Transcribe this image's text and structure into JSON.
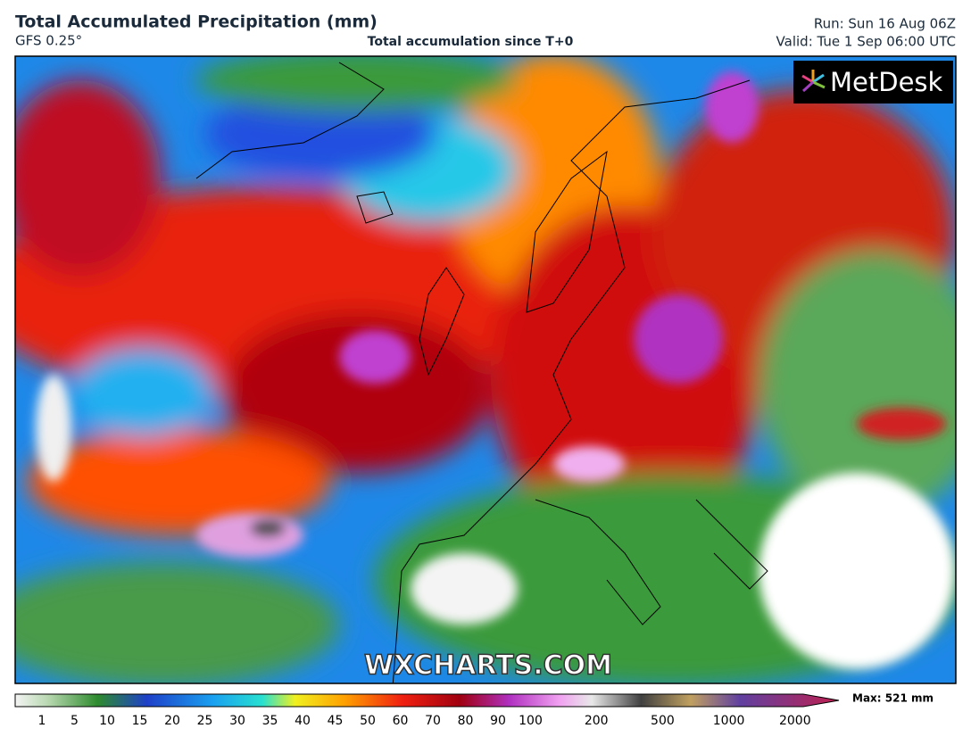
{
  "header": {
    "title": "Total Accumulated Precipitation (mm)",
    "model": "GFS 0.25°",
    "subtitle": "Total accumulation since T+0",
    "run": "Run: Sun 16 Aug 06Z",
    "valid": "Valid: Tue 1 Sep 06:00 UTC"
  },
  "map": {
    "logo": "MetDesk",
    "watermark": "WXCHARTS.COM"
  },
  "colorbar": {
    "labels": [
      1,
      5,
      10,
      15,
      20,
      25,
      30,
      35,
      40,
      45,
      50,
      60,
      70,
      80,
      90,
      100,
      200,
      500,
      1000,
      2000
    ],
    "max_label": "Max: 521 mm"
  }
}
